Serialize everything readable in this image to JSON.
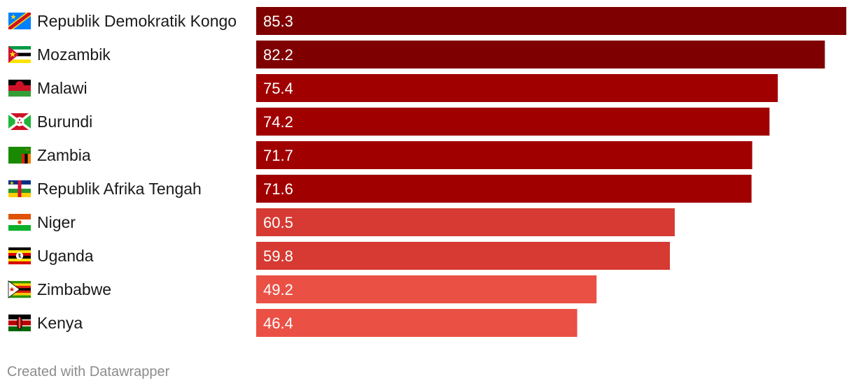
{
  "chart_data": {
    "type": "bar",
    "orientation": "horizontal",
    "categories": [
      "Republik Demokratik Kongo",
      "Mozambik",
      "Malawi",
      "Burundi",
      "Zambia",
      "Republik Afrika Tengah",
      "Niger",
      "Uganda",
      "Zimbabwe",
      "Kenya"
    ],
    "values": [
      85.3,
      82.2,
      75.4,
      74.2,
      71.7,
      71.6,
      60.5,
      59.8,
      49.2,
      46.4
    ],
    "value_labels": [
      "85.3",
      "82.2",
      "75.4",
      "74.2",
      "71.7",
      "71.6",
      "60.5",
      "59.8",
      "49.2",
      "46.4"
    ],
    "bar_colors": [
      "#7f0000",
      "#7f0000",
      "#a10000",
      "#a10000",
      "#a10000",
      "#a10000",
      "#d63a32",
      "#d63a32",
      "#ea5044",
      "#ea5044"
    ],
    "flags": [
      "flag-dr-congo-icon",
      "flag-mozambique-icon",
      "flag-malawi-icon",
      "flag-burundi-icon",
      "flag-zambia-icon",
      "flag-central-african-republic-icon",
      "flag-niger-icon",
      "flag-uganda-icon",
      "flag-zimbabwe-icon",
      "flag-kenya-icon"
    ],
    "xlim": [
      0,
      85.3
    ],
    "grid": false,
    "legend": "none"
  },
  "footer": {
    "credit": "Created with Datawrapper"
  }
}
